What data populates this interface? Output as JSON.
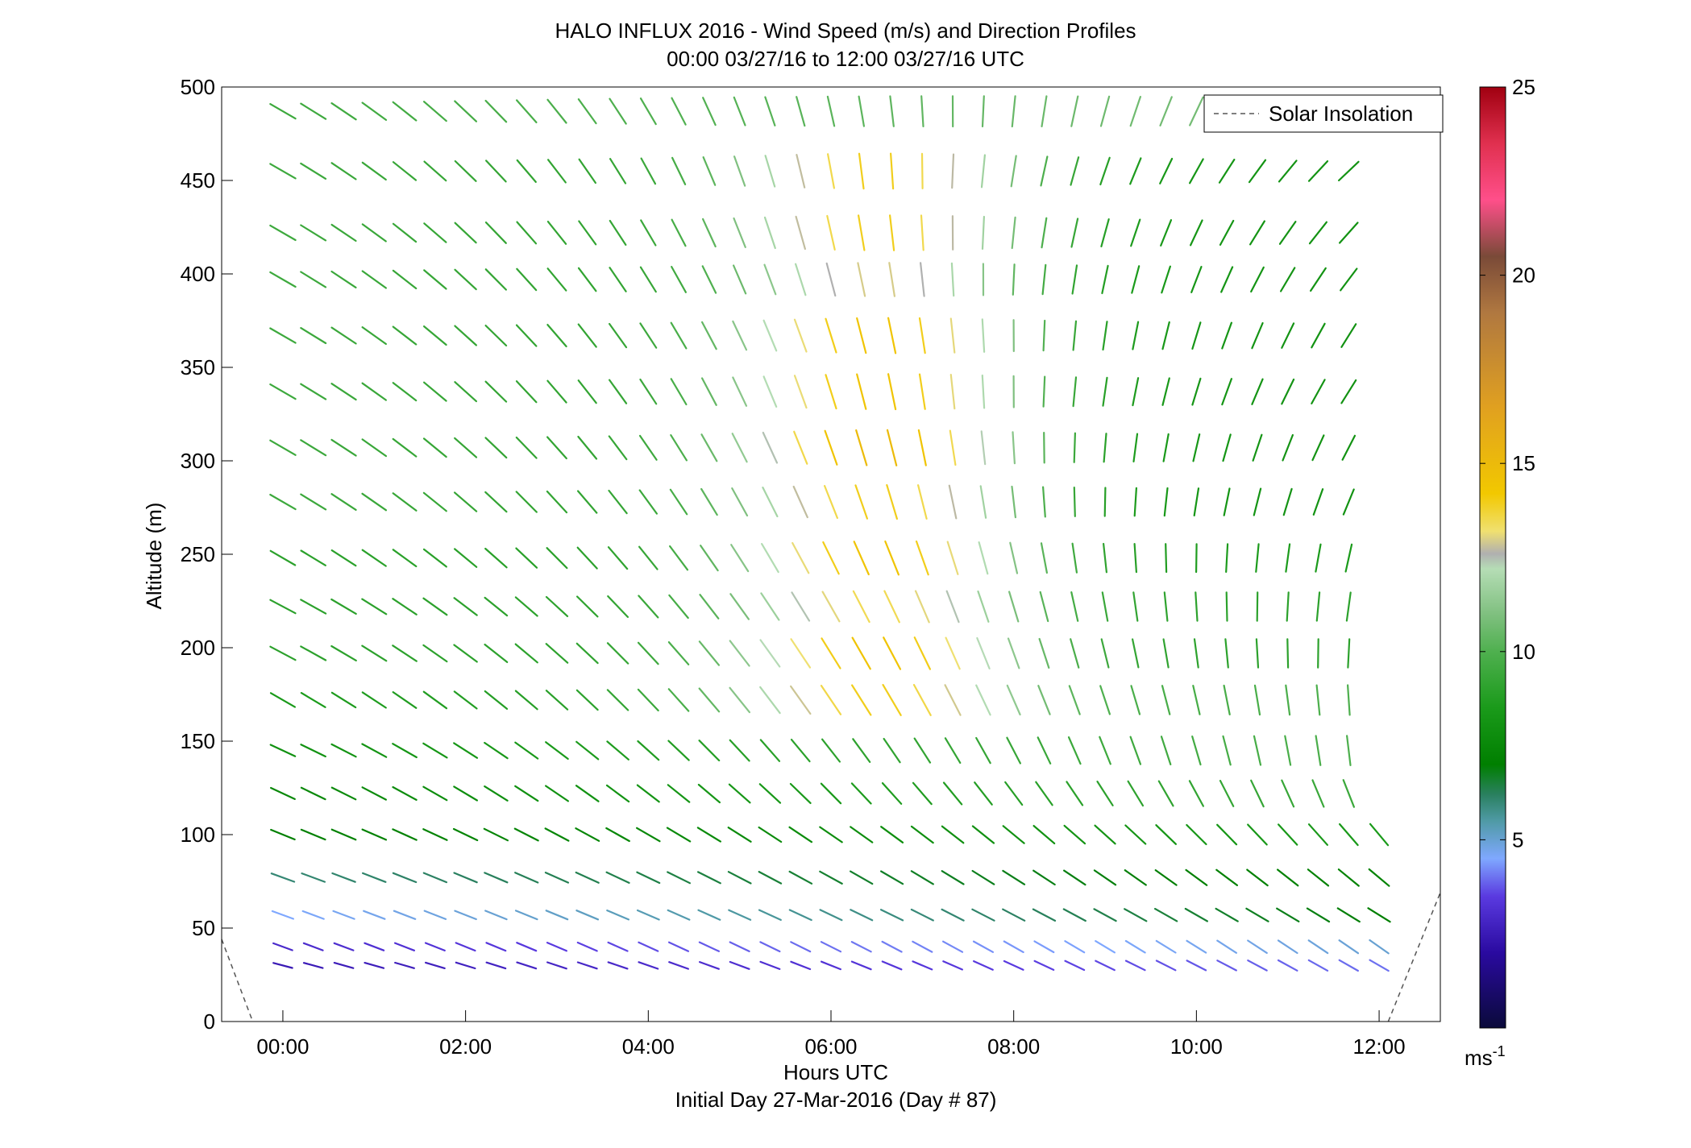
{
  "chart_data": {
    "type": "quiver",
    "title": "HALO INFLUX 2016 - Wind Speed (m/s) and Direction Profiles",
    "subtitle": "00:00 03/27/16 to 12:00 03/27/16  UTC",
    "xlabel": "Hours UTC",
    "xlabel2": "Initial Day 27-Mar-2016 (Day # 87)",
    "ylabel": "Altitude (m)",
    "xlim": [
      -0.67,
      12.67
    ],
    "ylim": [
      0,
      500
    ],
    "x_ticks": [
      0,
      2,
      4,
      6,
      8,
      10,
      12
    ],
    "x_tick_labels": [
      "00:00",
      "02:00",
      "04:00",
      "06:00",
      "08:00",
      "10:00",
      "12:00"
    ],
    "y_ticks": [
      0,
      50,
      100,
      150,
      200,
      250,
      300,
      350,
      400,
      450,
      500
    ],
    "y_tick_labels": [
      "0",
      "50",
      "100",
      "150",
      "200",
      "250",
      "300",
      "350",
      "400",
      "450",
      "500"
    ],
    "legend": {
      "label": "Solar Insolation",
      "location": "top-right",
      "line_style": "dashed",
      "color": "#555555"
    },
    "colorbar": {
      "label": "ms",
      "label_exponent": "-1",
      "range": [
        0,
        25
      ],
      "ticks": [
        5,
        10,
        15,
        20,
        25
      ],
      "tick_labels": [
        "5",
        "10",
        "15",
        "20",
        "25"
      ],
      "stops": [
        {
          "v": 0.0,
          "color": "#0a0a3a"
        },
        {
          "v": 2.0,
          "color": "#2a0aa0"
        },
        {
          "v": 3.5,
          "color": "#5a3ae0"
        },
        {
          "v": 4.5,
          "color": "#7fa8ff"
        },
        {
          "v": 5.5,
          "color": "#4f9aa5"
        },
        {
          "v": 6.2,
          "color": "#2a8060"
        },
        {
          "v": 7.0,
          "color": "#007f00"
        },
        {
          "v": 8.5,
          "color": "#1a9a1a"
        },
        {
          "v": 10.0,
          "color": "#4fb04f"
        },
        {
          "v": 11.0,
          "color": "#80c080"
        },
        {
          "v": 12.2,
          "color": "#b5ddb5"
        },
        {
          "v": 12.6,
          "color": "#b0b0b0"
        },
        {
          "v": 13.2,
          "color": "#f0e070"
        },
        {
          "v": 14.2,
          "color": "#f2c800"
        },
        {
          "v": 16.5,
          "color": "#e0a020"
        },
        {
          "v": 19.0,
          "color": "#b07840"
        },
        {
          "v": 20.5,
          "color": "#7a4a38"
        },
        {
          "v": 22.0,
          "color": "#ff4f8a"
        },
        {
          "v": 23.5,
          "color": "#e0304f"
        },
        {
          "v": 25.0,
          "color": "#a00010"
        }
      ]
    },
    "solar_insolation": [
      {
        "x": -0.67,
        "y": 44
      },
      {
        "x": -0.33,
        "y": 0
      },
      {
        "x": 12.1,
        "y": 0
      },
      {
        "x": 12.67,
        "y": 69
      }
    ],
    "times": [
      0.0,
      0.333,
      0.667,
      1.0,
      1.333,
      1.667,
      2.0,
      2.333,
      2.667,
      3.0,
      3.333,
      3.667,
      4.0,
      4.333,
      4.667,
      5.0,
      5.333,
      5.667,
      6.0,
      6.333,
      6.667,
      7.0,
      7.333,
      7.667,
      8.0,
      8.333,
      8.667,
      9.0,
      9.333,
      9.667,
      10.0,
      10.333,
      10.667,
      11.0,
      11.333,
      11.667,
      12.0
    ],
    "altitudes": [
      30,
      40,
      57,
      77,
      100,
      122,
      145,
      172,
      197,
      222,
      248,
      278,
      307,
      337,
      367,
      397,
      422,
      455,
      487
    ],
    "vector_note": "Arrow direction and speed (m/s) approximated per altitude row as a linear ramp over time: speed from speed_start to speed_end (with optional peak bump); direction angle in degrees counter-clockwise from +x (screen), from dir_start to dir_end.",
    "rows": [
      {
        "alt": 30,
        "t_end": 12.0,
        "speed_start": 2.5,
        "speed_end": 4.0,
        "peak": null,
        "dir_start": 165,
        "dir_end": 150
      },
      {
        "alt": 40,
        "t_end": 12.0,
        "speed_start": 3.0,
        "speed_end": 5.0,
        "peak": null,
        "dir_start": 160,
        "dir_end": 145
      },
      {
        "alt": 57,
        "t_end": 12.0,
        "speed_start": 4.5,
        "speed_end": 7.0,
        "peak": null,
        "dir_start": 160,
        "dir_end": 148
      },
      {
        "alt": 77,
        "t_end": 12.0,
        "speed_start": 6.0,
        "speed_end": 7.2,
        "peak": null,
        "dir_start": 160,
        "dir_end": 140
      },
      {
        "alt": 100,
        "t_end": 12.0,
        "speed_start": 7.0,
        "speed_end": 8.5,
        "peak": null,
        "dir_start": 158,
        "dir_end": 130
      },
      {
        "alt": 122,
        "t_end": 11.833,
        "speed_start": 7.5,
        "speed_end": 9.5,
        "peak": null,
        "dir_start": 155,
        "dir_end": 110
      },
      {
        "alt": 145,
        "t_end": 11.833,
        "speed_start": 8.0,
        "speed_end": 10.0,
        "peak": null,
        "dir_start": 155,
        "dir_end": 95
      },
      {
        "alt": 172,
        "t_end": 11.667,
        "speed_start": 8.5,
        "speed_end": 10.0,
        "peak": 14.0,
        "dir_start": 150,
        "dir_end": 92
      },
      {
        "alt": 197,
        "t_end": 11.667,
        "speed_start": 9.0,
        "speed_end": 9.0,
        "peak": 14.5,
        "dir_start": 152,
        "dir_end": 85
      },
      {
        "alt": 222,
        "t_end": 11.667,
        "speed_start": 9.0,
        "speed_end": 9.0,
        "peak": 13.5,
        "dir_start": 152,
        "dir_end": 80
      },
      {
        "alt": 248,
        "t_end": 11.667,
        "speed_start": 9.0,
        "speed_end": 8.5,
        "peak": 14.5,
        "dir_start": 150,
        "dir_end": 75
      },
      {
        "alt": 278,
        "t_end": 11.667,
        "speed_start": 9.5,
        "speed_end": 8.0,
        "peak": 14.0,
        "dir_start": 150,
        "dir_end": 65
      },
      {
        "alt": 307,
        "t_end": 11.667,
        "speed_start": 9.5,
        "speed_end": 8.0,
        "peak": 15.0,
        "dir_start": 150,
        "dir_end": 60
      },
      {
        "alt": 337,
        "t_end": 11.667,
        "speed_start": 9.5,
        "speed_end": 8.0,
        "peak": 14.5,
        "dir_start": 150,
        "dir_end": 55
      },
      {
        "alt": 367,
        "t_end": 11.667,
        "speed_start": 9.5,
        "speed_end": 8.0,
        "peak": 14.5,
        "dir_start": 150,
        "dir_end": 55
      },
      {
        "alt": 397,
        "t_end": 11.667,
        "speed_start": 9.5,
        "speed_end": 8.0,
        "peak": 13.0,
        "dir_start": 150,
        "dir_end": 50
      },
      {
        "alt": 422,
        "t_end": 11.667,
        "speed_start": 9.5,
        "speed_end": 8.0,
        "peak": 14.0,
        "dir_start": 150,
        "dir_end": 45
      },
      {
        "alt": 455,
        "t_end": 11.667,
        "speed_start": 9.5,
        "speed_end": 8.0,
        "peak": 14.0,
        "dir_start": 150,
        "dir_end": 40
      },
      {
        "alt": 487,
        "t_end": 10.333,
        "speed_start": 9.5,
        "speed_end": 11.0,
        "peak": null,
        "dir_start": 150,
        "dir_end": 45
      }
    ]
  }
}
